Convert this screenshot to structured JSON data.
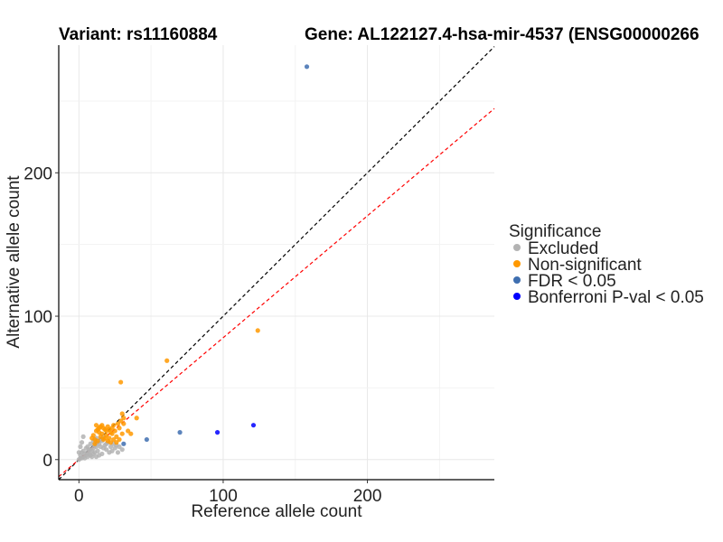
{
  "chart_data": {
    "type": "scatter",
    "title_left": "Variant: rs11160884",
    "title_right": "Gene: AL122127.4-hsa-mir-4537 (ENSG00000266",
    "xlabel": "Reference allele count",
    "ylabel": "Alternative allele count",
    "xlim": [
      -14,
      288
    ],
    "ylim": [
      -14,
      289
    ],
    "xticks": [
      0,
      100,
      200
    ],
    "yticks": [
      0,
      100,
      200
    ],
    "grid": true,
    "legend_title": "Significance",
    "legend": [
      {
        "name": "Excluded",
        "color": "#b3b3b3"
      },
      {
        "name": "Non-significant",
        "color": "#ff9900"
      },
      {
        "name": "FDR < 0.05",
        "color": "#3f6fb0"
      },
      {
        "name": "Bonferroni P-val < 0.05",
        "color": "#0000ff"
      }
    ],
    "reference_lines": [
      {
        "name": "identity",
        "slope": 1.0,
        "intercept": 0,
        "color": "#000000"
      },
      {
        "name": "fitted",
        "slope": 0.85,
        "intercept": 0,
        "color": "#ff0000"
      }
    ],
    "series": [
      {
        "name": "Excluded",
        "color": "#b3b3b3",
        "points": [
          [
            0,
            0
          ],
          [
            1,
            1
          ],
          [
            2,
            1
          ],
          [
            1,
            3
          ],
          [
            3,
            2
          ],
          [
            4,
            4
          ],
          [
            5,
            3
          ],
          [
            3,
            6
          ],
          [
            6,
            5
          ],
          [
            7,
            4
          ],
          [
            5,
            8
          ],
          [
            8,
            7
          ],
          [
            9,
            6
          ],
          [
            6,
            9
          ],
          [
            10,
            8
          ],
          [
            11,
            10
          ],
          [
            8,
            11
          ],
          [
            12,
            9
          ],
          [
            13,
            12
          ],
          [
            10,
            13
          ],
          [
            14,
            11
          ],
          [
            15,
            14
          ],
          [
            12,
            15
          ],
          [
            16,
            13
          ],
          [
            17,
            16
          ],
          [
            4,
            1
          ],
          [
            2,
            5
          ],
          [
            7,
            7
          ],
          [
            9,
            2
          ],
          [
            11,
            5
          ],
          [
            13,
            6
          ],
          [
            15,
            9
          ],
          [
            18,
            10
          ],
          [
            20,
            12
          ],
          [
            22,
            9
          ],
          [
            24,
            11
          ],
          [
            19,
            7
          ],
          [
            21,
            5
          ],
          [
            16,
            4
          ],
          [
            14,
            3
          ],
          [
            12,
            2
          ],
          [
            25,
            8
          ],
          [
            26,
            10
          ],
          [
            23,
            6
          ],
          [
            1,
            9
          ],
          [
            2,
            12
          ],
          [
            3,
            16
          ],
          [
            0,
            5
          ],
          [
            6,
            2
          ],
          [
            8,
            3
          ],
          [
            10,
            4
          ],
          [
            17,
            8
          ],
          [
            19,
            11
          ],
          [
            27,
            5
          ],
          [
            28,
            9
          ],
          [
            30,
            7
          ]
        ]
      },
      {
        "name": "Non-significant",
        "color": "#ff9900",
        "points": [
          [
            10,
            17
          ],
          [
            12,
            20
          ],
          [
            14,
            22
          ],
          [
            16,
            18
          ],
          [
            18,
            21
          ],
          [
            20,
            23
          ],
          [
            22,
            19
          ],
          [
            24,
            24
          ],
          [
            15,
            16
          ],
          [
            17,
            14
          ],
          [
            19,
            17
          ],
          [
            21,
            15
          ],
          [
            23,
            18
          ],
          [
            25,
            20
          ],
          [
            13,
            13
          ],
          [
            11,
            14
          ],
          [
            26,
            16
          ],
          [
            28,
            22
          ],
          [
            30,
            18
          ],
          [
            12,
            24
          ],
          [
            14,
            19
          ],
          [
            16,
            24
          ],
          [
            18,
            15
          ],
          [
            20,
            13
          ],
          [
            22,
            12
          ],
          [
            24,
            14
          ],
          [
            26,
            12
          ],
          [
            28,
            14
          ],
          [
            11,
            11
          ],
          [
            9,
            15
          ],
          [
            27,
            25
          ],
          [
            29,
            27
          ],
          [
            31,
            29
          ],
          [
            13,
            21
          ],
          [
            15,
            23
          ],
          [
            17,
            22
          ],
          [
            19,
            20
          ],
          [
            21,
            21
          ],
          [
            23,
            22
          ],
          [
            30,
            32
          ],
          [
            31,
            25
          ],
          [
            34,
            20
          ],
          [
            36,
            18
          ],
          [
            40,
            29
          ],
          [
            29,
            54
          ],
          [
            61,
            69
          ],
          [
            124,
            90
          ]
        ]
      },
      {
        "name": "FDR < 0.05",
        "color": "#3f6fb0",
        "points": [
          [
            31,
            11
          ],
          [
            47,
            14
          ],
          [
            70,
            19
          ],
          [
            158,
            274
          ]
        ]
      },
      {
        "name": "Bonferroni P-val < 0.05",
        "color": "#0000ff",
        "points": [
          [
            96,
            19
          ],
          [
            121,
            24
          ]
        ]
      }
    ]
  }
}
